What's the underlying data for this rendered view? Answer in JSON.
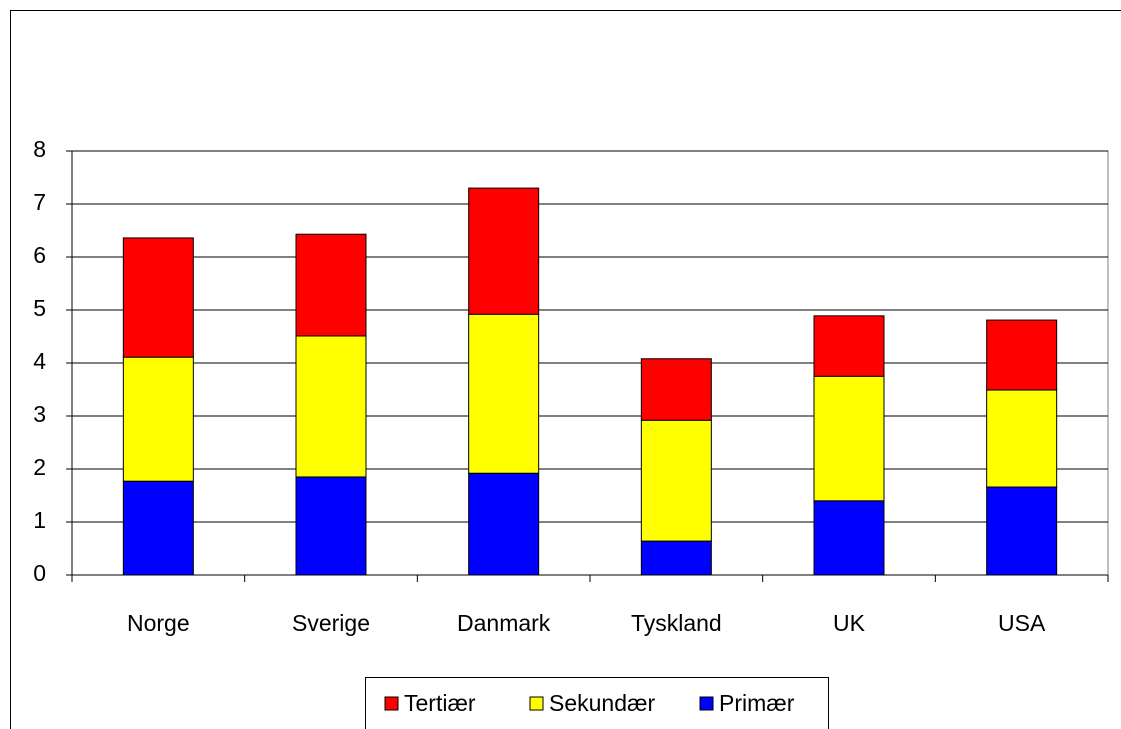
{
  "chart_data": {
    "type": "stacked_bar",
    "categories": [
      "Norge",
      "Sverige",
      "Danmark",
      "Tyskland",
      "UK",
      "USA"
    ],
    "series": [
      {
        "name": "Primær",
        "color": "#0000ff",
        "values": [
          1.77,
          1.85,
          1.92,
          0.64,
          1.4,
          1.66
        ]
      },
      {
        "name": "Sekundær",
        "color": "#ffff00",
        "values": [
          2.34,
          2.66,
          3.0,
          2.28,
          2.35,
          1.83
        ]
      },
      {
        "name": "Tertiær",
        "color": "#ff0000",
        "values": [
          2.25,
          1.92,
          2.38,
          1.16,
          1.14,
          1.32
        ]
      }
    ],
    "ylim": [
      0,
      8
    ],
    "yticks": [
      0,
      1,
      2,
      3,
      4,
      5,
      6,
      7,
      8
    ],
    "grid": true,
    "legend": "bottom"
  }
}
